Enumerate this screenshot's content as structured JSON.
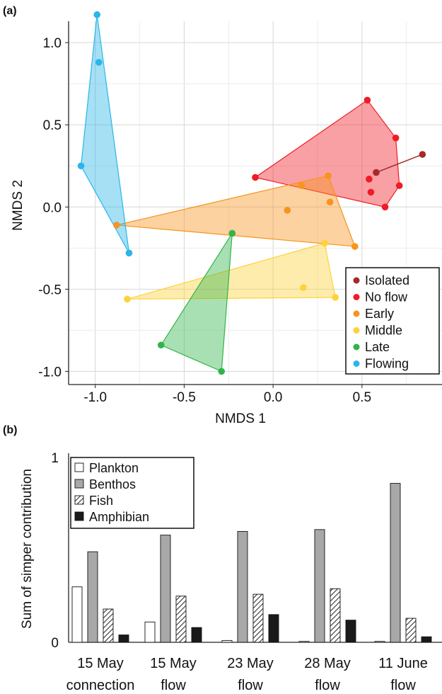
{
  "panels": {
    "a_label": "(a)",
    "b_label": "(b)"
  },
  "chart_data": [
    {
      "type": "scatter",
      "xlabel": "NMDS 1",
      "ylabel": "NMDS 2",
      "xlim": [
        -1.15,
        0.95
      ],
      "ylim": [
        -1.08,
        1.13
      ],
      "xticks": [
        -1.0,
        -0.5,
        0.0,
        0.5
      ],
      "xtick_labels": [
        "-1.0",
        "-0.5",
        "0.0",
        "0.5"
      ],
      "yticks": [
        -1.0,
        -0.5,
        0.0,
        0.5,
        1.0
      ],
      "ytick_labels": [
        "-1.0",
        "-0.5",
        "0.0",
        "0.5",
        "1.0"
      ],
      "grid": true,
      "legend_position": "bottom-right",
      "series": [
        {
          "name": "Isolated",
          "color": "#a52a2a",
          "points": [
            [
              0.58,
              0.21
            ],
            [
              0.84,
              0.32
            ]
          ]
        },
        {
          "name": "No flow",
          "color": "#ee1c25",
          "points": [
            [
              -0.1,
              0.18
            ],
            [
              0.53,
              0.65
            ],
            [
              0.69,
              0.42
            ],
            [
              0.71,
              0.13
            ],
            [
              0.63,
              0.0
            ],
            [
              0.54,
              0.17
            ],
            [
              0.55,
              0.09
            ]
          ]
        },
        {
          "name": "Early",
          "color": "#f7941d",
          "points": [
            [
              -0.88,
              -0.11
            ],
            [
              0.46,
              -0.24
            ],
            [
              0.31,
              0.19
            ],
            [
              0.16,
              0.13
            ],
            [
              0.32,
              0.03
            ],
            [
              0.08,
              -0.02
            ]
          ]
        },
        {
          "name": "Middle",
          "color": "#fdd23b",
          "points": [
            [
              -0.82,
              -0.56
            ],
            [
              0.29,
              -0.22
            ],
            [
              0.35,
              -0.55
            ],
            [
              0.17,
              -0.49
            ]
          ]
        },
        {
          "name": "Late",
          "color": "#31b44b",
          "points": [
            [
              -0.23,
              -0.16
            ],
            [
              -0.63,
              -0.84
            ],
            [
              -0.29,
              -1.0
            ]
          ]
        },
        {
          "name": "Flowing",
          "color": "#29b6e8",
          "points": [
            [
              -0.99,
              1.17
            ],
            [
              -1.08,
              0.25
            ],
            [
              -0.81,
              -0.28
            ],
            [
              -0.98,
              0.88
            ]
          ]
        }
      ]
    },
    {
      "type": "bar",
      "ylabel": "Sum of simper contribution",
      "ylim": [
        0,
        1
      ],
      "yticks": [
        0,
        1
      ],
      "ytick_labels": [
        "0",
        "1"
      ],
      "legend_position": "top-left",
      "categories": [
        [
          "15 May",
          "connection"
        ],
        [
          "15 May",
          "flow"
        ],
        [
          "23 May",
          "flow"
        ],
        [
          "28 May",
          "flow"
        ],
        [
          "11 June",
          "flow"
        ]
      ],
      "series": [
        {
          "name": "Plankton",
          "style": "white",
          "values": [
            0.3,
            0.11,
            0.01,
            0.005,
            0.005
          ]
        },
        {
          "name": "Benthos",
          "style": "gray",
          "values": [
            0.49,
            0.58,
            0.6,
            0.61,
            0.86
          ]
        },
        {
          "name": "Fish",
          "style": "hatched",
          "values": [
            0.18,
            0.25,
            0.26,
            0.29,
            0.13
          ]
        },
        {
          "name": "Amphibian",
          "style": "black",
          "values": [
            0.04,
            0.08,
            0.15,
            0.12,
            0.03
          ]
        }
      ]
    }
  ]
}
